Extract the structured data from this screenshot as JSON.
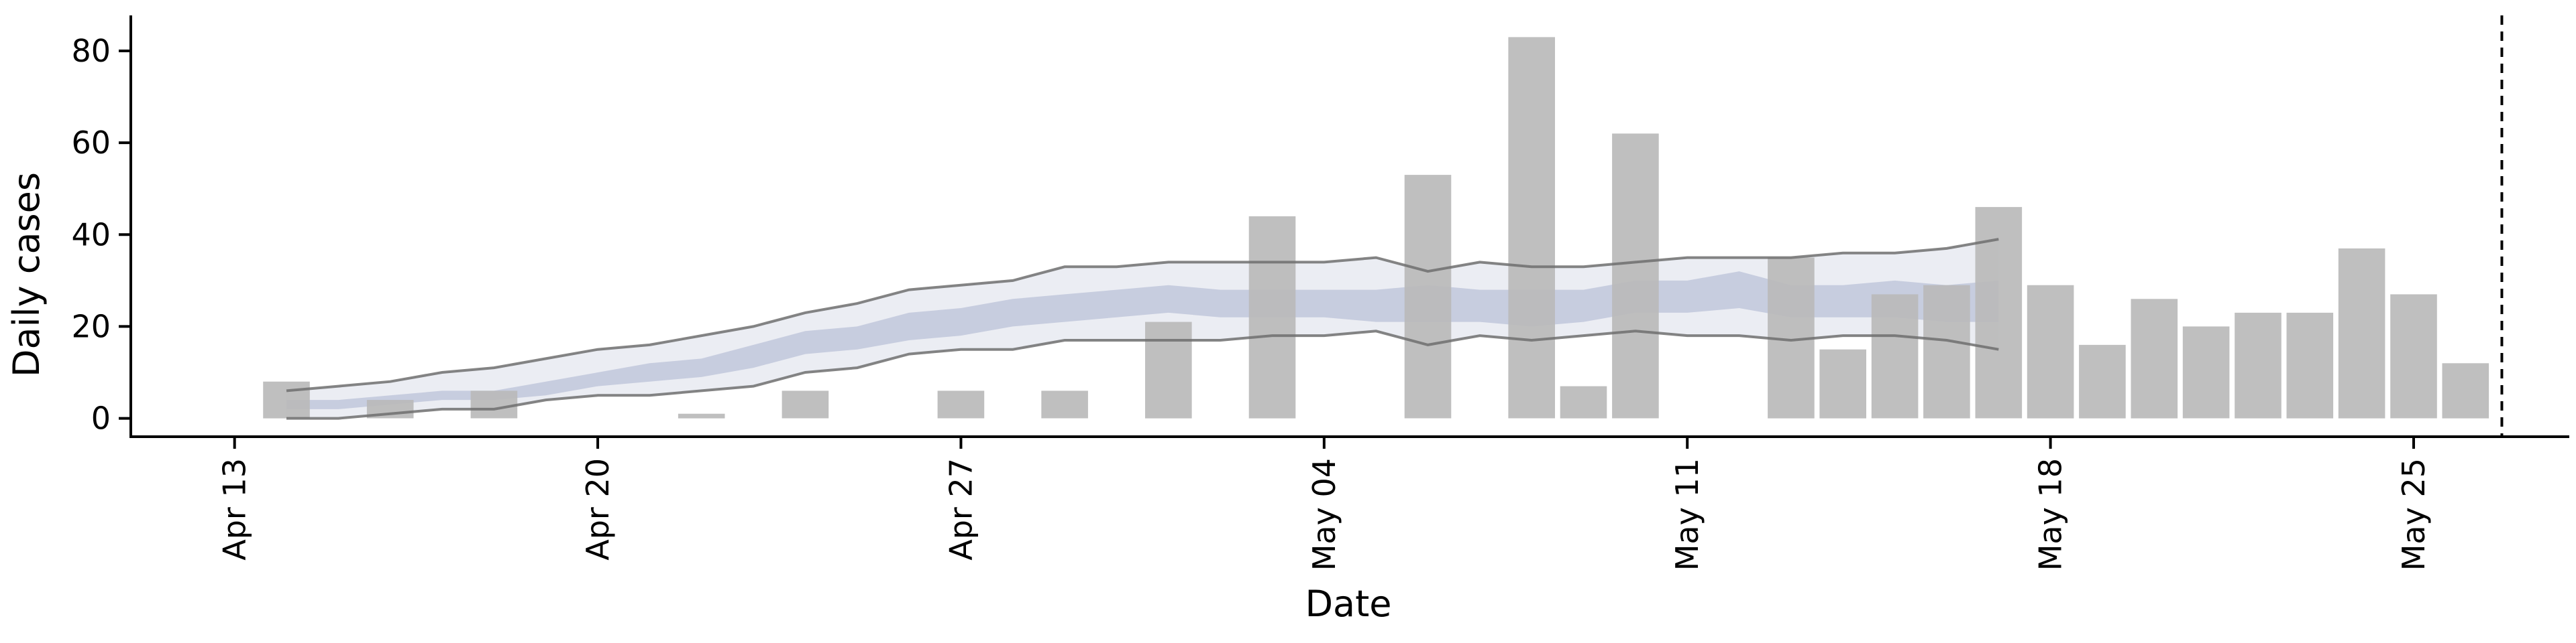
{
  "chart_data": {
    "type": "bar",
    "xlabel": "Date",
    "ylabel": "Daily cases",
    "ylim": [
      -4,
      87
    ],
    "yticks": [
      0,
      20,
      40,
      60,
      80
    ],
    "x_range": [
      "2020-04-11",
      "2020-05-28"
    ],
    "xticks": [
      {
        "date": "2020-04-13",
        "label": "Apr 13"
      },
      {
        "date": "2020-04-20",
        "label": "Apr 20"
      },
      {
        "date": "2020-04-27",
        "label": "Apr 27"
      },
      {
        "date": "2020-05-04",
        "label": "May 04"
      },
      {
        "date": "2020-05-11",
        "label": "May 11"
      },
      {
        "date": "2020-05-18",
        "label": "May 18"
      },
      {
        "date": "2020-05-25",
        "label": "May 25"
      }
    ],
    "vline_date": "2020-05-26",
    "grid": false,
    "legend": "none",
    "series": [
      {
        "kind": "bar",
        "x": [
          "2020-04-14",
          "2020-04-16",
          "2020-04-18",
          "2020-04-22",
          "2020-04-24",
          "2020-04-27",
          "2020-04-29",
          "2020-05-01",
          "2020-05-03",
          "2020-05-06",
          "2020-05-08",
          "2020-05-09",
          "2020-05-10",
          "2020-05-13",
          "2020-05-14",
          "2020-05-15",
          "2020-05-16",
          "2020-05-17",
          "2020-05-18",
          "2020-05-19",
          "2020-05-20",
          "2020-05-21",
          "2020-05-22",
          "2020-05-23",
          "2020-05-24",
          "2020-05-25",
          "2020-05-26"
        ],
        "values": [
          8,
          4,
          6,
          1,
          6,
          6,
          6,
          21,
          44,
          53,
          83,
          7,
          62,
          35,
          15,
          27,
          29,
          46,
          29,
          16,
          26,
          20,
          23,
          23,
          37,
          27,
          12
        ]
      },
      {
        "kind": "band",
        "x": [
          "2020-04-14",
          "2020-04-15",
          "2020-04-16",
          "2020-04-17",
          "2020-04-18",
          "2020-04-19",
          "2020-04-20",
          "2020-04-21",
          "2020-04-22",
          "2020-04-23",
          "2020-04-24",
          "2020-04-25",
          "2020-04-26",
          "2020-04-27",
          "2020-04-28",
          "2020-04-29",
          "2020-04-30",
          "2020-05-01",
          "2020-05-02",
          "2020-05-03",
          "2020-05-04",
          "2020-05-05",
          "2020-05-06",
          "2020-05-07",
          "2020-05-08",
          "2020-05-09",
          "2020-05-10",
          "2020-05-11",
          "2020-05-12",
          "2020-05-13",
          "2020-05-14",
          "2020-05-15",
          "2020-05-16",
          "2020-05-17"
        ],
        "lower": [
          0,
          0,
          1,
          2,
          2,
          4,
          5,
          5,
          6,
          7,
          10,
          11,
          14,
          15,
          15,
          17,
          17,
          17,
          17,
          18,
          18,
          19,
          16,
          18,
          17,
          18,
          19,
          18,
          18,
          17,
          18,
          18,
          17,
          15
        ],
        "upper": [
          6,
          7,
          8,
          10,
          11,
          13,
          15,
          16,
          18,
          20,
          23,
          25,
          28,
          29,
          30,
          33,
          33,
          34,
          34,
          34,
          34,
          35,
          32,
          34,
          33,
          33,
          34,
          35,
          35,
          35,
          36,
          36,
          37,
          39
        ]
      },
      {
        "kind": "median_band",
        "x": [
          "2020-04-14",
          "2020-04-15",
          "2020-04-16",
          "2020-04-17",
          "2020-04-18",
          "2020-04-19",
          "2020-04-20",
          "2020-04-21",
          "2020-04-22",
          "2020-04-23",
          "2020-04-24",
          "2020-04-25",
          "2020-04-26",
          "2020-04-27",
          "2020-04-28",
          "2020-04-29",
          "2020-04-30",
          "2020-05-01",
          "2020-05-02",
          "2020-05-03",
          "2020-05-04",
          "2020-05-05",
          "2020-05-06",
          "2020-05-07",
          "2020-05-08",
          "2020-05-09",
          "2020-05-10",
          "2020-05-11",
          "2020-05-12",
          "2020-05-13",
          "2020-05-14",
          "2020-05-15",
          "2020-05-16",
          "2020-05-17"
        ],
        "lower": [
          2,
          2,
          3,
          4,
          4,
          5,
          7,
          8,
          9,
          11,
          14,
          15,
          17,
          18,
          20,
          21,
          22,
          23,
          22,
          22,
          22,
          21,
          21,
          21,
          20,
          21,
          23,
          23,
          24,
          22,
          22,
          22,
          21,
          21
        ],
        "upper": [
          4,
          4,
          5,
          6,
          6,
          8,
          10,
          12,
          13,
          16,
          19,
          20,
          23,
          24,
          26,
          27,
          28,
          29,
          28,
          28,
          28,
          28,
          29,
          28,
          28,
          28,
          30,
          30,
          32,
          29,
          29,
          30,
          29,
          30
        ]
      }
    ],
    "colors": {
      "bars": "#bababa",
      "band_fill": "#e9ebf2",
      "band_edge": "#6f6f6f",
      "median_fill": "#c3c9dd",
      "axis": "#000000"
    }
  }
}
